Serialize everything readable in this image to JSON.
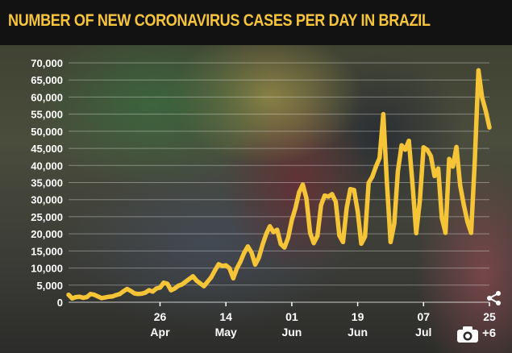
{
  "header": {
    "title": "NUMBER OF NEW CORONAVIRUS CASES PER DAY IN BRAZIL"
  },
  "gallery": {
    "camera_icon": "camera-icon",
    "photo_count": "+6",
    "share_icon": "share-icon"
  },
  "colors": {
    "line": "#f5c537",
    "title": "#f6c53a",
    "title_band": "#121212",
    "labels": "#ffffff",
    "grid": "#ffffff"
  },
  "chart_data": {
    "type": "line",
    "title": "NUMBER OF NEW CORONAVIRUS CASES PER DAY IN BRAZIL",
    "xlabel": "",
    "ylabel": "",
    "ylim": [
      0,
      70000
    ],
    "yticks": [
      0,
      5000,
      10000,
      15000,
      20000,
      25000,
      30000,
      35000,
      40000,
      45000,
      50000,
      55000,
      60000,
      65000,
      70000
    ],
    "ytick_labels": [
      "0",
      "5,000",
      "10,000",
      "15,000",
      "20,000",
      "25,000",
      "30,000",
      "35,000",
      "40,000",
      "45,000",
      "50,000",
      "55,000",
      "60,000",
      "65,000",
      "70,000"
    ],
    "xlim": [
      "2020-04-01",
      "2020-07-25"
    ],
    "xticks": [
      {
        "date": "2020-04-26",
        "day": "26",
        "month": "Apr"
      },
      {
        "date": "2020-05-14",
        "day": "14",
        "month": "May"
      },
      {
        "date": "2020-06-01",
        "day": "01",
        "month": "Jun"
      },
      {
        "date": "2020-06-19",
        "day": "19",
        "month": "Jun"
      },
      {
        "date": "2020-07-07",
        "day": "07",
        "month": "Jul"
      },
      {
        "date": "2020-07-25",
        "day": "25",
        "month": ""
      }
    ],
    "grid": true,
    "legend": "none",
    "series": [
      {
        "values": [
          [
            "2020-04-01",
            2200
          ],
          [
            "2020-04-02",
            1100
          ],
          [
            "2020-04-03",
            1500
          ],
          [
            "2020-04-04",
            1600
          ],
          [
            "2020-04-05",
            1300
          ],
          [
            "2020-04-06",
            1500
          ],
          [
            "2020-04-07",
            2400
          ],
          [
            "2020-04-08",
            2200
          ],
          [
            "2020-04-09",
            1700
          ],
          [
            "2020-04-10",
            1200
          ],
          [
            "2020-04-11",
            1400
          ],
          [
            "2020-04-12",
            1600
          ],
          [
            "2020-04-13",
            1700
          ],
          [
            "2020-04-14",
            2100
          ],
          [
            "2020-04-15",
            2400
          ],
          [
            "2020-04-16",
            3200
          ],
          [
            "2020-04-17",
            3900
          ],
          [
            "2020-04-18",
            3300
          ],
          [
            "2020-04-19",
            2600
          ],
          [
            "2020-04-20",
            2400
          ],
          [
            "2020-04-21",
            2500
          ],
          [
            "2020-04-22",
            2800
          ],
          [
            "2020-04-23",
            3500
          ],
          [
            "2020-04-24",
            3100
          ],
          [
            "2020-04-25",
            4000
          ],
          [
            "2020-04-26",
            4300
          ],
          [
            "2020-04-27",
            5700
          ],
          [
            "2020-04-28",
            5400
          ],
          [
            "2020-04-29",
            3500
          ],
          [
            "2020-04-30",
            4000
          ],
          [
            "2020-05-01",
            4800
          ],
          [
            "2020-05-02",
            5200
          ],
          [
            "2020-05-03",
            6000
          ],
          [
            "2020-05-04",
            6800
          ],
          [
            "2020-05-05",
            7600
          ],
          [
            "2020-05-06",
            6300
          ],
          [
            "2020-05-07",
            5500
          ],
          [
            "2020-05-08",
            4700
          ],
          [
            "2020-05-09",
            6000
          ],
          [
            "2020-05-10",
            7300
          ],
          [
            "2020-05-11",
            9300
          ],
          [
            "2020-05-12",
            11100
          ],
          [
            "2020-05-13",
            10600
          ],
          [
            "2020-05-14",
            10800
          ],
          [
            "2020-05-15",
            9900
          ],
          [
            "2020-05-16",
            7000
          ],
          [
            "2020-05-17",
            9900
          ],
          [
            "2020-05-18",
            11900
          ],
          [
            "2020-05-19",
            14500
          ],
          [
            "2020-05-20",
            16300
          ],
          [
            "2020-05-21",
            14500
          ],
          [
            "2020-05-22",
            11000
          ],
          [
            "2020-05-23",
            13000
          ],
          [
            "2020-05-24",
            16800
          ],
          [
            "2020-05-25",
            19900
          ],
          [
            "2020-05-26",
            22200
          ],
          [
            "2020-05-27",
            20500
          ],
          [
            "2020-05-28",
            21200
          ],
          [
            "2020-05-29",
            17000
          ],
          [
            "2020-05-30",
            16000
          ],
          [
            "2020-05-31",
            18800
          ],
          [
            "2020-06-01",
            24000
          ],
          [
            "2020-06-02",
            27500
          ],
          [
            "2020-06-03",
            32200
          ],
          [
            "2020-06-04",
            34400
          ],
          [
            "2020-06-05",
            30400
          ],
          [
            "2020-06-06",
            20300
          ],
          [
            "2020-06-07",
            17300
          ],
          [
            "2020-06-08",
            19400
          ],
          [
            "2020-06-09",
            28400
          ],
          [
            "2020-06-10",
            31200
          ],
          [
            "2020-06-11",
            30900
          ],
          [
            "2020-06-12",
            31600
          ],
          [
            "2020-06-13",
            29400
          ],
          [
            "2020-06-14",
            19500
          ],
          [
            "2020-06-15",
            17600
          ],
          [
            "2020-06-16",
            27600
          ],
          [
            "2020-06-17",
            33100
          ],
          [
            "2020-06-18",
            32800
          ],
          [
            "2020-06-19",
            26600
          ],
          [
            "2020-06-20",
            17100
          ],
          [
            "2020-06-21",
            19200
          ],
          [
            "2020-06-22",
            34900
          ],
          [
            "2020-06-23",
            36700
          ],
          [
            "2020-06-24",
            39700
          ],
          [
            "2020-06-25",
            42200
          ],
          [
            "2020-06-26",
            55000
          ],
          [
            "2020-06-27",
            34800
          ],
          [
            "2020-06-28",
            17600
          ],
          [
            "2020-06-29",
            23000
          ],
          [
            "2020-06-30",
            38400
          ],
          [
            "2020-07-01",
            45900
          ],
          [
            "2020-07-02",
            44600
          ],
          [
            "2020-07-03",
            47200
          ],
          [
            "2020-07-04",
            34300
          ],
          [
            "2020-07-05",
            20200
          ],
          [
            "2020-07-06",
            29900
          ],
          [
            "2020-07-07",
            45300
          ],
          [
            "2020-07-08",
            44600
          ],
          [
            "2020-07-09",
            42700
          ],
          [
            "2020-07-10",
            36900
          ],
          [
            "2020-07-11",
            39100
          ],
          [
            "2020-07-12",
            24600
          ],
          [
            "2020-07-13",
            20300
          ],
          [
            "2020-07-14",
            41900
          ],
          [
            "2020-07-15",
            39700
          ],
          [
            "2020-07-16",
            45400
          ],
          [
            "2020-07-17",
            34200
          ],
          [
            "2020-07-18",
            28500
          ],
          [
            "2020-07-19",
            23500
          ],
          [
            "2020-07-20",
            20300
          ],
          [
            "2020-07-21",
            41000
          ],
          [
            "2020-07-22",
            67800
          ],
          [
            "2020-07-23",
            59900
          ],
          [
            "2020-07-24",
            55900
          ],
          [
            "2020-07-25",
            51100
          ]
        ]
      }
    ]
  }
}
